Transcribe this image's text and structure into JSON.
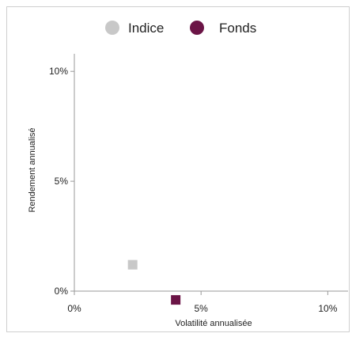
{
  "chart_data": {
    "type": "scatter",
    "xlabel": "Volatilité annualisée",
    "ylabel": "Rendement annualisé",
    "xlim": [
      0,
      10.8
    ],
    "ylim": [
      0,
      10.8
    ],
    "x_ticks": [
      0,
      5,
      10
    ],
    "y_ticks": [
      0,
      5,
      10
    ],
    "x_tick_labels": [
      "0%",
      "5%",
      "10%"
    ],
    "y_tick_labels": [
      "0%",
      "5%",
      "10%"
    ],
    "grid": false,
    "legend_position": "top",
    "series": [
      {
        "name": "Indice",
        "color": "#c8c8c8",
        "legend_marker": "circle",
        "marker": "square",
        "points": [
          {
            "x": 2.3,
            "y": 1.2
          }
        ]
      },
      {
        "name": "Fonds",
        "color": "#6b1446",
        "legend_marker": "circle",
        "marker": "square",
        "points": [
          {
            "x": 4.0,
            "y": -0.4
          }
        ]
      }
    ]
  }
}
